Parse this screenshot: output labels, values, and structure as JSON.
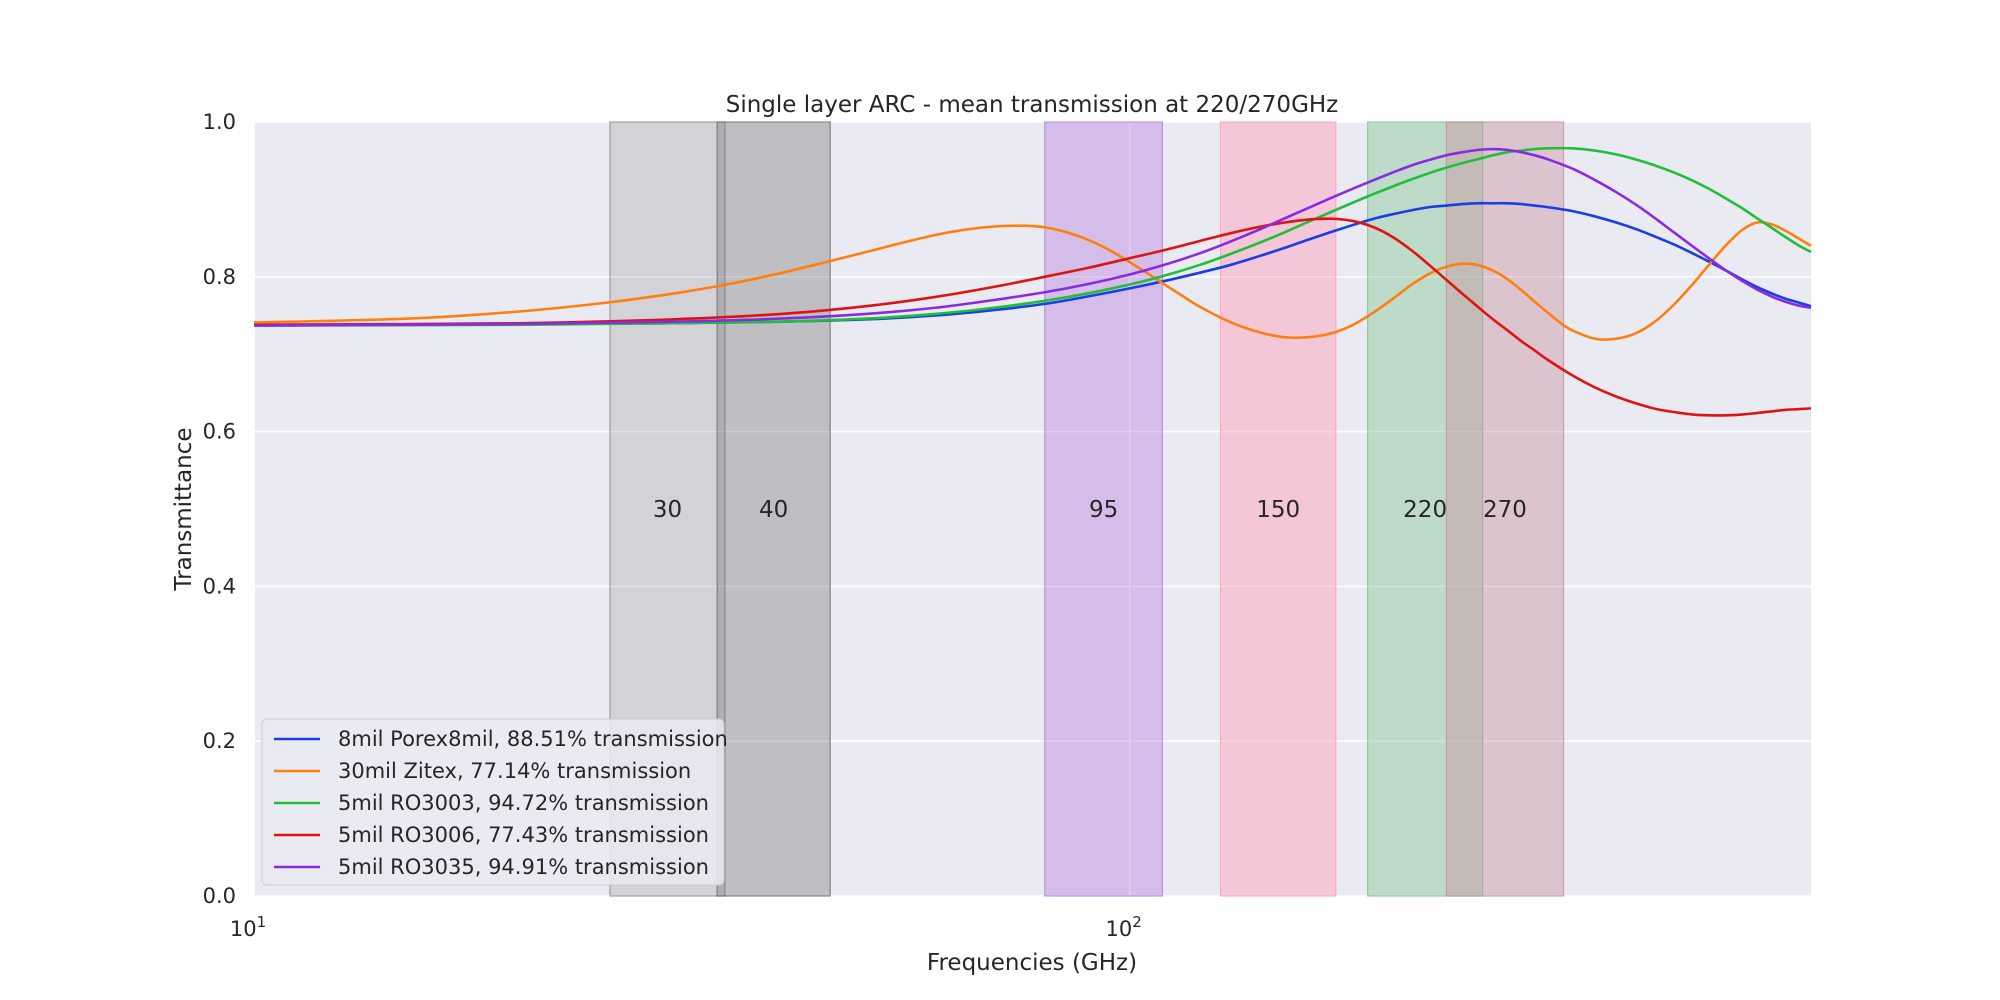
{
  "chart_data": {
    "type": "line",
    "title": "Single layer ARC - mean transmission at 220/270GHz",
    "xlabel": "Frequencies (GHz)",
    "ylabel": "Transmittance",
    "xscale": "log",
    "xlim": [
      10,
      600
    ],
    "ylim": [
      0.0,
      1.0
    ],
    "grid": true,
    "legend_position": "lower-left",
    "yticks": [
      0.0,
      0.2,
      0.4,
      0.6,
      0.8,
      1.0
    ],
    "ytick_labels": [
      "0.0",
      "0.2",
      "0.4",
      "0.6",
      "0.8",
      "1.0"
    ],
    "xticks": [
      {
        "value": 10,
        "base": "10",
        "exp": "1"
      },
      {
        "value": 100,
        "base": "10",
        "exp": "2"
      }
    ],
    "bands": [
      {
        "label": "30",
        "x0": 25.5,
        "x1": 34.5,
        "color": "#8c8c8c",
        "alpha": 0.25
      },
      {
        "label": "40",
        "x0": 33.8,
        "x1": 45.5,
        "color": "#6e6e6e",
        "alpha": 0.35
      },
      {
        "label": "95",
        "x0": 80,
        "x1": 109,
        "color": "#b57edc",
        "alpha": 0.4
      },
      {
        "label": "150",
        "x0": 127,
        "x1": 172,
        "color": "#ff9eb5",
        "alpha": 0.45
      },
      {
        "label": "220",
        "x0": 187,
        "x1": 253,
        "color": "#7cc48a",
        "alpha": 0.4
      },
      {
        "label": "270",
        "x0": 230,
        "x1": 313,
        "color": "#c78d9c",
        "alpha": 0.4
      }
    ],
    "series": [
      {
        "name": "8mil Porex8mil, 88.51% transmission",
        "color": "#1a3ee6",
        "x": [
          10,
          20,
          30,
          40,
          50,
          60,
          70,
          80,
          90,
          100,
          110,
          120,
          130,
          140,
          150,
          160,
          170,
          180,
          190,
          200,
          210,
          220,
          230,
          240,
          250,
          260,
          270,
          280,
          290,
          300,
          320,
          340,
          360,
          380,
          400,
          420,
          440,
          460,
          480,
          500,
          520,
          540,
          560,
          580,
          600
        ],
        "y": [
          0.738,
          0.739,
          0.74,
          0.742,
          0.745,
          0.75,
          0.757,
          0.765,
          0.775,
          0.785,
          0.795,
          0.805,
          0.815,
          0.826,
          0.837,
          0.848,
          0.858,
          0.867,
          0.875,
          0.881,
          0.886,
          0.89,
          0.892,
          0.894,
          0.895,
          0.895,
          0.895,
          0.894,
          0.892,
          0.89,
          0.885,
          0.878,
          0.87,
          0.861,
          0.851,
          0.841,
          0.83,
          0.819,
          0.808,
          0.797,
          0.787,
          0.779,
          0.772,
          0.767,
          0.762
        ]
      },
      {
        "name": "30mil Zitex, 77.14% transmission",
        "color": "#ff7f0e",
        "x": [
          10,
          15,
          20,
          25,
          30,
          35,
          40,
          45,
          50,
          55,
          60,
          65,
          70,
          75,
          80,
          85,
          90,
          95,
          100,
          105,
          110,
          115,
          120,
          130,
          140,
          150,
          160,
          170,
          180,
          190,
          200,
          210,
          220,
          230,
          240,
          250,
          260,
          270,
          280,
          290,
          300,
          310,
          320,
          340,
          360,
          380,
          400,
          420,
          440,
          460,
          480,
          500,
          520,
          540,
          560,
          580,
          600
        ],
        "y": [
          0.741,
          0.746,
          0.755,
          0.766,
          0.778,
          0.791,
          0.805,
          0.819,
          0.832,
          0.844,
          0.854,
          0.861,
          0.865,
          0.866,
          0.864,
          0.857,
          0.847,
          0.834,
          0.819,
          0.804,
          0.789,
          0.775,
          0.762,
          0.742,
          0.729,
          0.722,
          0.722,
          0.727,
          0.738,
          0.754,
          0.772,
          0.79,
          0.804,
          0.813,
          0.817,
          0.815,
          0.808,
          0.797,
          0.783,
          0.768,
          0.754,
          0.741,
          0.731,
          0.72,
          0.72,
          0.728,
          0.744,
          0.766,
          0.791,
          0.817,
          0.841,
          0.86,
          0.87,
          0.868,
          0.86,
          0.85,
          0.84
        ]
      },
      {
        "name": "5mil RO3003, 94.72% transmission",
        "color": "#1fbf3a",
        "x": [
          10,
          20,
          30,
          40,
          50,
          60,
          70,
          80,
          90,
          100,
          110,
          120,
          130,
          140,
          150,
          160,
          170,
          180,
          190,
          200,
          210,
          220,
          230,
          240,
          250,
          260,
          270,
          280,
          290,
          300,
          320,
          340,
          360,
          380,
          400,
          420,
          440,
          460,
          480,
          500,
          520,
          540,
          560,
          580,
          600
        ],
        "y": [
          0.737,
          0.738,
          0.74,
          0.742,
          0.746,
          0.752,
          0.76,
          0.769,
          0.779,
          0.79,
          0.802,
          0.815,
          0.829,
          0.843,
          0.857,
          0.871,
          0.884,
          0.896,
          0.907,
          0.917,
          0.926,
          0.934,
          0.941,
          0.947,
          0.952,
          0.957,
          0.961,
          0.963,
          0.965,
          0.966,
          0.966,
          0.963,
          0.958,
          0.951,
          0.943,
          0.934,
          0.924,
          0.913,
          0.901,
          0.889,
          0.876,
          0.864,
          0.852,
          0.841,
          0.832
        ]
      },
      {
        "name": "5mil RO3006, 77.43% transmission",
        "color": "#dd1414",
        "x": [
          10,
          20,
          30,
          40,
          50,
          60,
          70,
          80,
          90,
          100,
          110,
          120,
          130,
          140,
          150,
          160,
          170,
          180,
          190,
          200,
          210,
          220,
          230,
          240,
          250,
          260,
          270,
          280,
          290,
          300,
          320,
          340,
          360,
          380,
          400,
          420,
          440,
          460,
          480,
          500,
          520,
          540,
          560,
          580,
          600
        ],
        "y": [
          0.738,
          0.74,
          0.745,
          0.752,
          0.762,
          0.774,
          0.787,
          0.8,
          0.812,
          0.824,
          0.835,
          0.846,
          0.856,
          0.864,
          0.87,
          0.874,
          0.875,
          0.872,
          0.864,
          0.851,
          0.834,
          0.815,
          0.796,
          0.778,
          0.761,
          0.745,
          0.731,
          0.717,
          0.705,
          0.693,
          0.673,
          0.657,
          0.645,
          0.636,
          0.629,
          0.625,
          0.622,
          0.621,
          0.621,
          0.622,
          0.624,
          0.626,
          0.628,
          0.629,
          0.63
        ]
      },
      {
        "name": "5mil RO3035, 94.91% transmission",
        "color": "#8a2be2",
        "x": [
          10,
          20,
          30,
          40,
          50,
          60,
          70,
          80,
          90,
          100,
          110,
          120,
          130,
          140,
          150,
          160,
          170,
          180,
          190,
          200,
          210,
          220,
          230,
          240,
          250,
          260,
          270,
          280,
          290,
          300,
          320,
          340,
          360,
          380,
          400,
          420,
          440,
          460,
          480,
          500,
          520,
          540,
          560,
          580,
          600
        ],
        "y": [
          0.737,
          0.739,
          0.742,
          0.746,
          0.752,
          0.76,
          0.77,
          0.78,
          0.791,
          0.803,
          0.816,
          0.83,
          0.845,
          0.86,
          0.875,
          0.889,
          0.902,
          0.914,
          0.925,
          0.935,
          0.944,
          0.951,
          0.957,
          0.961,
          0.964,
          0.965,
          0.964,
          0.961,
          0.957,
          0.952,
          0.94,
          0.925,
          0.909,
          0.892,
          0.874,
          0.856,
          0.839,
          0.823,
          0.808,
          0.795,
          0.784,
          0.775,
          0.768,
          0.763,
          0.76
        ]
      }
    ]
  }
}
